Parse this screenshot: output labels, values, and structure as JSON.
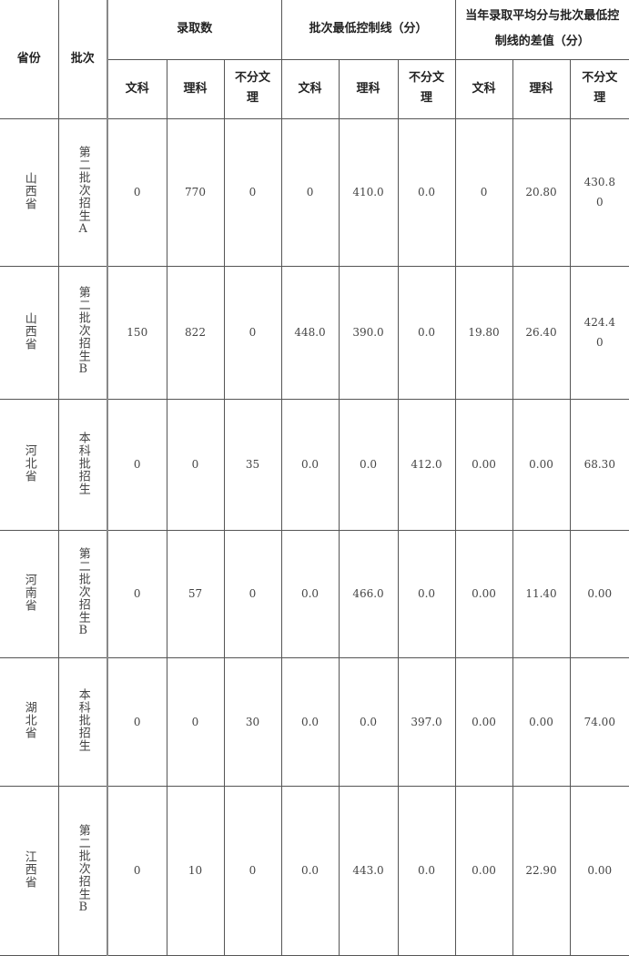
{
  "header": {
    "province": "省份",
    "batch": "批次",
    "group_admitted": "录取数",
    "group_control_line": "批次最低控制线（分）",
    "group_diff": "当年录取平均分与批次最低控制线的差值（分）",
    "sub": [
      "文科",
      "理科",
      "不分文理",
      "文科",
      "理科",
      "不分文理",
      "文科",
      "理科",
      "不分文理"
    ]
  },
  "rows": [
    {
      "province": "山西省",
      "batch": "第二批次招生A",
      "values": [
        "0",
        "770",
        "0",
        "0",
        "410.0",
        "0.0",
        "0",
        "20.80",
        "430.80"
      ]
    },
    {
      "province": "山西省",
      "batch": "第二批次招生B",
      "values": [
        "150",
        "822",
        "0",
        "448.0",
        "390.0",
        "0.0",
        "19.80",
        "26.40",
        "424.40"
      ]
    },
    {
      "province": "河北省",
      "batch": "本科批招生",
      "values": [
        "0",
        "0",
        "35",
        "0.0",
        "0.0",
        "412.0",
        "0.00",
        "0.00",
        "68.30"
      ]
    },
    {
      "province": "河南省",
      "batch": "第二批次招生B",
      "values": [
        "0",
        "57",
        "0",
        "0.0",
        "466.0",
        "0.0",
        "0.00",
        "11.40",
        "0.00"
      ]
    },
    {
      "province": "湖北省",
      "batch": "本科批招生",
      "values": [
        "0",
        "0",
        "30",
        "0.0",
        "0.0",
        "397.0",
        "0.00",
        "0.00",
        "74.00"
      ]
    },
    {
      "province": "江西省",
      "batch": "第二批次招生B",
      "values": [
        "0",
        "10",
        "0",
        "0.0",
        "443.0",
        "0.0",
        "0.00",
        "22.90",
        "0.00"
      ]
    }
  ]
}
